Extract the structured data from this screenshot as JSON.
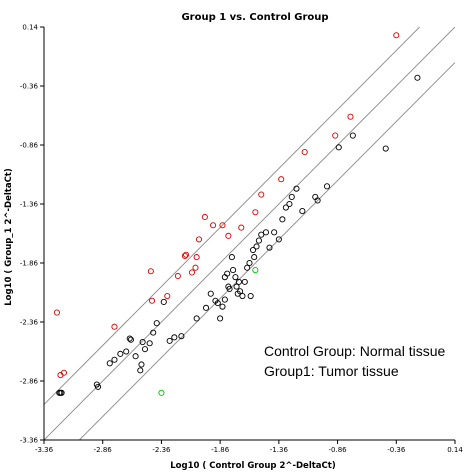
{
  "chart_data": {
    "type": "scatter",
    "title": "Group 1 vs. Control Group",
    "xlabel": "Log10 ( Control Group 2^-DeltaCt)",
    "ylabel": "Log10 ( Group_1 2^-DeltaCt)",
    "xlim": [
      -3.36,
      0.14
    ],
    "ylim": [
      -3.36,
      0.14
    ],
    "x_ticks": [
      -3.36,
      -2.86,
      -2.36,
      -1.86,
      -1.36,
      -0.86,
      -0.36,
      0.14
    ],
    "y_ticks": [
      -3.36,
      -2.86,
      -2.36,
      -1.86,
      -1.36,
      -0.86,
      -0.36,
      0.14
    ],
    "x_tick_labels": [
      "-3.36",
      "-2.86",
      "-2.36",
      "-1.86",
      "-1.36",
      "-0.86",
      "-0.36",
      "0.14"
    ],
    "y_tick_labels": [
      "-3.36",
      "-2.86",
      "-2.36",
      "-1.86",
      "-1.36",
      "-0.86",
      "-0.36",
      "0.14"
    ],
    "grid": false,
    "reference_lines": [
      {
        "slope": 1,
        "intercept": 0
      },
      {
        "slope": 1,
        "intercept": 0.301
      },
      {
        "slope": 1,
        "intercept": -0.301
      }
    ],
    "annotations": [
      "Control Group: Normal tissue",
      "Group1: Tumor tissue"
    ],
    "colors": {
      "unchanged": "#000000",
      "up": "#e00000",
      "down": "#00c000",
      "line": "#888888"
    },
    "series": [
      {
        "color_key": "unchanged",
        "points": [
          [
            -3.23,
            -2.96
          ],
          [
            -3.22,
            -2.96
          ],
          [
            -3.21,
            -2.96
          ],
          [
            -2.91,
            -2.89
          ],
          [
            -2.9,
            -2.91
          ],
          [
            -2.8,
            -2.71
          ],
          [
            -2.76,
            -2.68
          ],
          [
            -2.71,
            -2.63
          ],
          [
            -2.66,
            -2.61
          ],
          [
            -2.63,
            -2.5
          ],
          [
            -2.62,
            -2.51
          ],
          [
            -2.58,
            -2.65
          ],
          [
            -2.54,
            -2.77
          ],
          [
            -2.53,
            -2.72
          ],
          [
            -2.52,
            -2.53
          ],
          [
            -2.5,
            -2.59
          ],
          [
            -2.46,
            -2.54
          ],
          [
            -2.43,
            -2.45
          ],
          [
            -2.4,
            -2.37
          ],
          [
            -2.34,
            -2.19
          ],
          [
            -2.29,
            -2.52
          ],
          [
            -2.25,
            -2.49
          ],
          [
            -2.19,
            -2.48
          ],
          [
            -2.06,
            -2.33
          ],
          [
            -1.98,
            -2.24
          ],
          [
            -1.94,
            -2.12
          ],
          [
            -1.9,
            -2.18
          ],
          [
            -1.88,
            -2.2
          ],
          [
            -1.86,
            -2.33
          ],
          [
            -1.84,
            -2.23
          ],
          [
            -1.82,
            -2.17
          ],
          [
            -1.82,
            -1.98
          ],
          [
            -1.8,
            -1.95
          ],
          [
            -1.79,
            -2.06
          ],
          [
            -1.78,
            -2.08
          ],
          [
            -1.76,
            -1.81
          ],
          [
            -1.75,
            -1.92
          ],
          [
            -1.73,
            -1.98
          ],
          [
            -1.72,
            -2.06
          ],
          [
            -1.71,
            -2.12
          ],
          [
            -1.7,
            -2.02
          ],
          [
            -1.69,
            -2.1
          ],
          [
            -1.67,
            -2.14
          ],
          [
            -1.65,
            -2.02
          ],
          [
            -1.63,
            -1.9
          ],
          [
            -1.61,
            -1.86
          ],
          [
            -1.6,
            -2.14
          ],
          [
            -1.58,
            -1.75
          ],
          [
            -1.57,
            -1.81
          ],
          [
            -1.55,
            -1.72
          ],
          [
            -1.53,
            -1.67
          ],
          [
            -1.51,
            -1.62
          ],
          [
            -1.47,
            -1.6
          ],
          [
            -1.44,
            -1.73
          ],
          [
            -1.4,
            -1.6
          ],
          [
            -1.36,
            -1.66
          ],
          [
            -1.33,
            -1.49
          ],
          [
            -1.3,
            -1.39
          ],
          [
            -1.27,
            -1.36
          ],
          [
            -1.25,
            -1.3
          ],
          [
            -1.21,
            -1.23
          ],
          [
            -1.16,
            -1.42
          ],
          [
            -1.05,
            -1.3
          ],
          [
            -1.03,
            -1.33
          ],
          [
            -0.95,
            -1.21
          ],
          [
            -0.85,
            -0.88
          ],
          [
            -0.73,
            -0.78
          ],
          [
            -0.45,
            -0.89
          ],
          [
            -0.18,
            -0.29
          ]
        ]
      },
      {
        "color_key": "up",
        "points": [
          [
            -3.25,
            -2.28
          ],
          [
            -3.22,
            -2.81
          ],
          [
            -3.19,
            -2.79
          ],
          [
            -2.76,
            -2.4
          ],
          [
            -2.45,
            -1.93
          ],
          [
            -2.44,
            -2.18
          ],
          [
            -2.31,
            -2.14
          ],
          [
            -2.22,
            -1.97
          ],
          [
            -2.16,
            -1.8
          ],
          [
            -2.15,
            -1.79
          ],
          [
            -2.1,
            -1.94
          ],
          [
            -2.07,
            -1.9
          ],
          [
            -2.06,
            -1.81
          ],
          [
            -2.04,
            -1.66
          ],
          [
            -1.99,
            -1.47
          ],
          [
            -1.92,
            -1.54
          ],
          [
            -1.84,
            -1.54
          ],
          [
            -1.79,
            -1.63
          ],
          [
            -1.68,
            -1.56
          ],
          [
            -1.56,
            -1.43
          ],
          [
            -1.51,
            -1.28
          ],
          [
            -1.34,
            -1.15
          ],
          [
            -1.14,
            -0.92
          ],
          [
            -0.88,
            -0.78
          ],
          [
            -0.75,
            -0.62
          ],
          [
            -0.36,
            0.07
          ]
        ]
      },
      {
        "color_key": "down",
        "points": [
          [
            -2.36,
            -2.96
          ],
          [
            -1.56,
            -1.92
          ]
        ]
      }
    ]
  }
}
